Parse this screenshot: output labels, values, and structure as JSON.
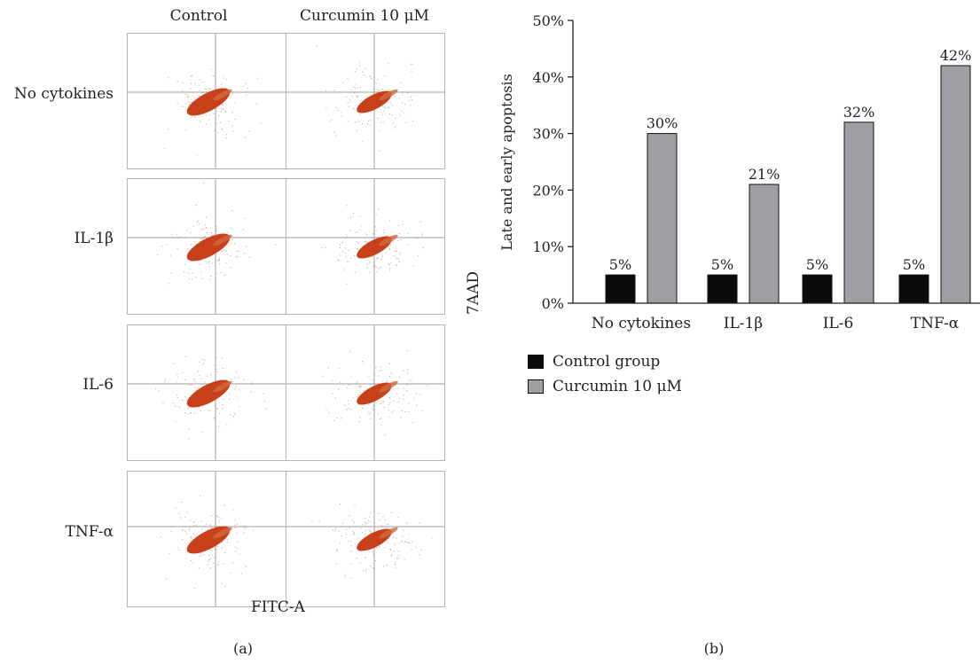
{
  "panel_a": {
    "columns": [
      "Control",
      "Curcumin 10 μM"
    ],
    "rows": [
      "No cytokines",
      "IL-1β",
      "IL-6",
      "TNF-α"
    ],
    "xlabel": "FITC-A",
    "ylabel": "7AAD",
    "tag": "(a)",
    "dot_color": "#c8401a"
  },
  "chart_data": {
    "type": "bar",
    "categories": [
      "No cytokines",
      "IL-1β",
      "IL-6",
      "TNF-α"
    ],
    "series": [
      {
        "name": "Control group",
        "values": [
          5,
          5,
          5,
          5
        ],
        "color": "#0a0a0a",
        "labels": [
          "5%",
          "5%",
          "5%",
          "5%"
        ]
      },
      {
        "name": "Curcumin 10 μM",
        "values": [
          30,
          21,
          32,
          42
        ],
        "color": "#a09ea5",
        "labels": [
          "30%",
          "21%",
          "32%",
          "42%"
        ]
      }
    ],
    "ylabel": "Late and early apoptosis",
    "ylim": [
      0,
      50
    ],
    "yticks": [
      "0%",
      "10%",
      "20%",
      "30%",
      "40%",
      "50%"
    ],
    "legend_position": "bottom-left",
    "tag": "(b)"
  }
}
